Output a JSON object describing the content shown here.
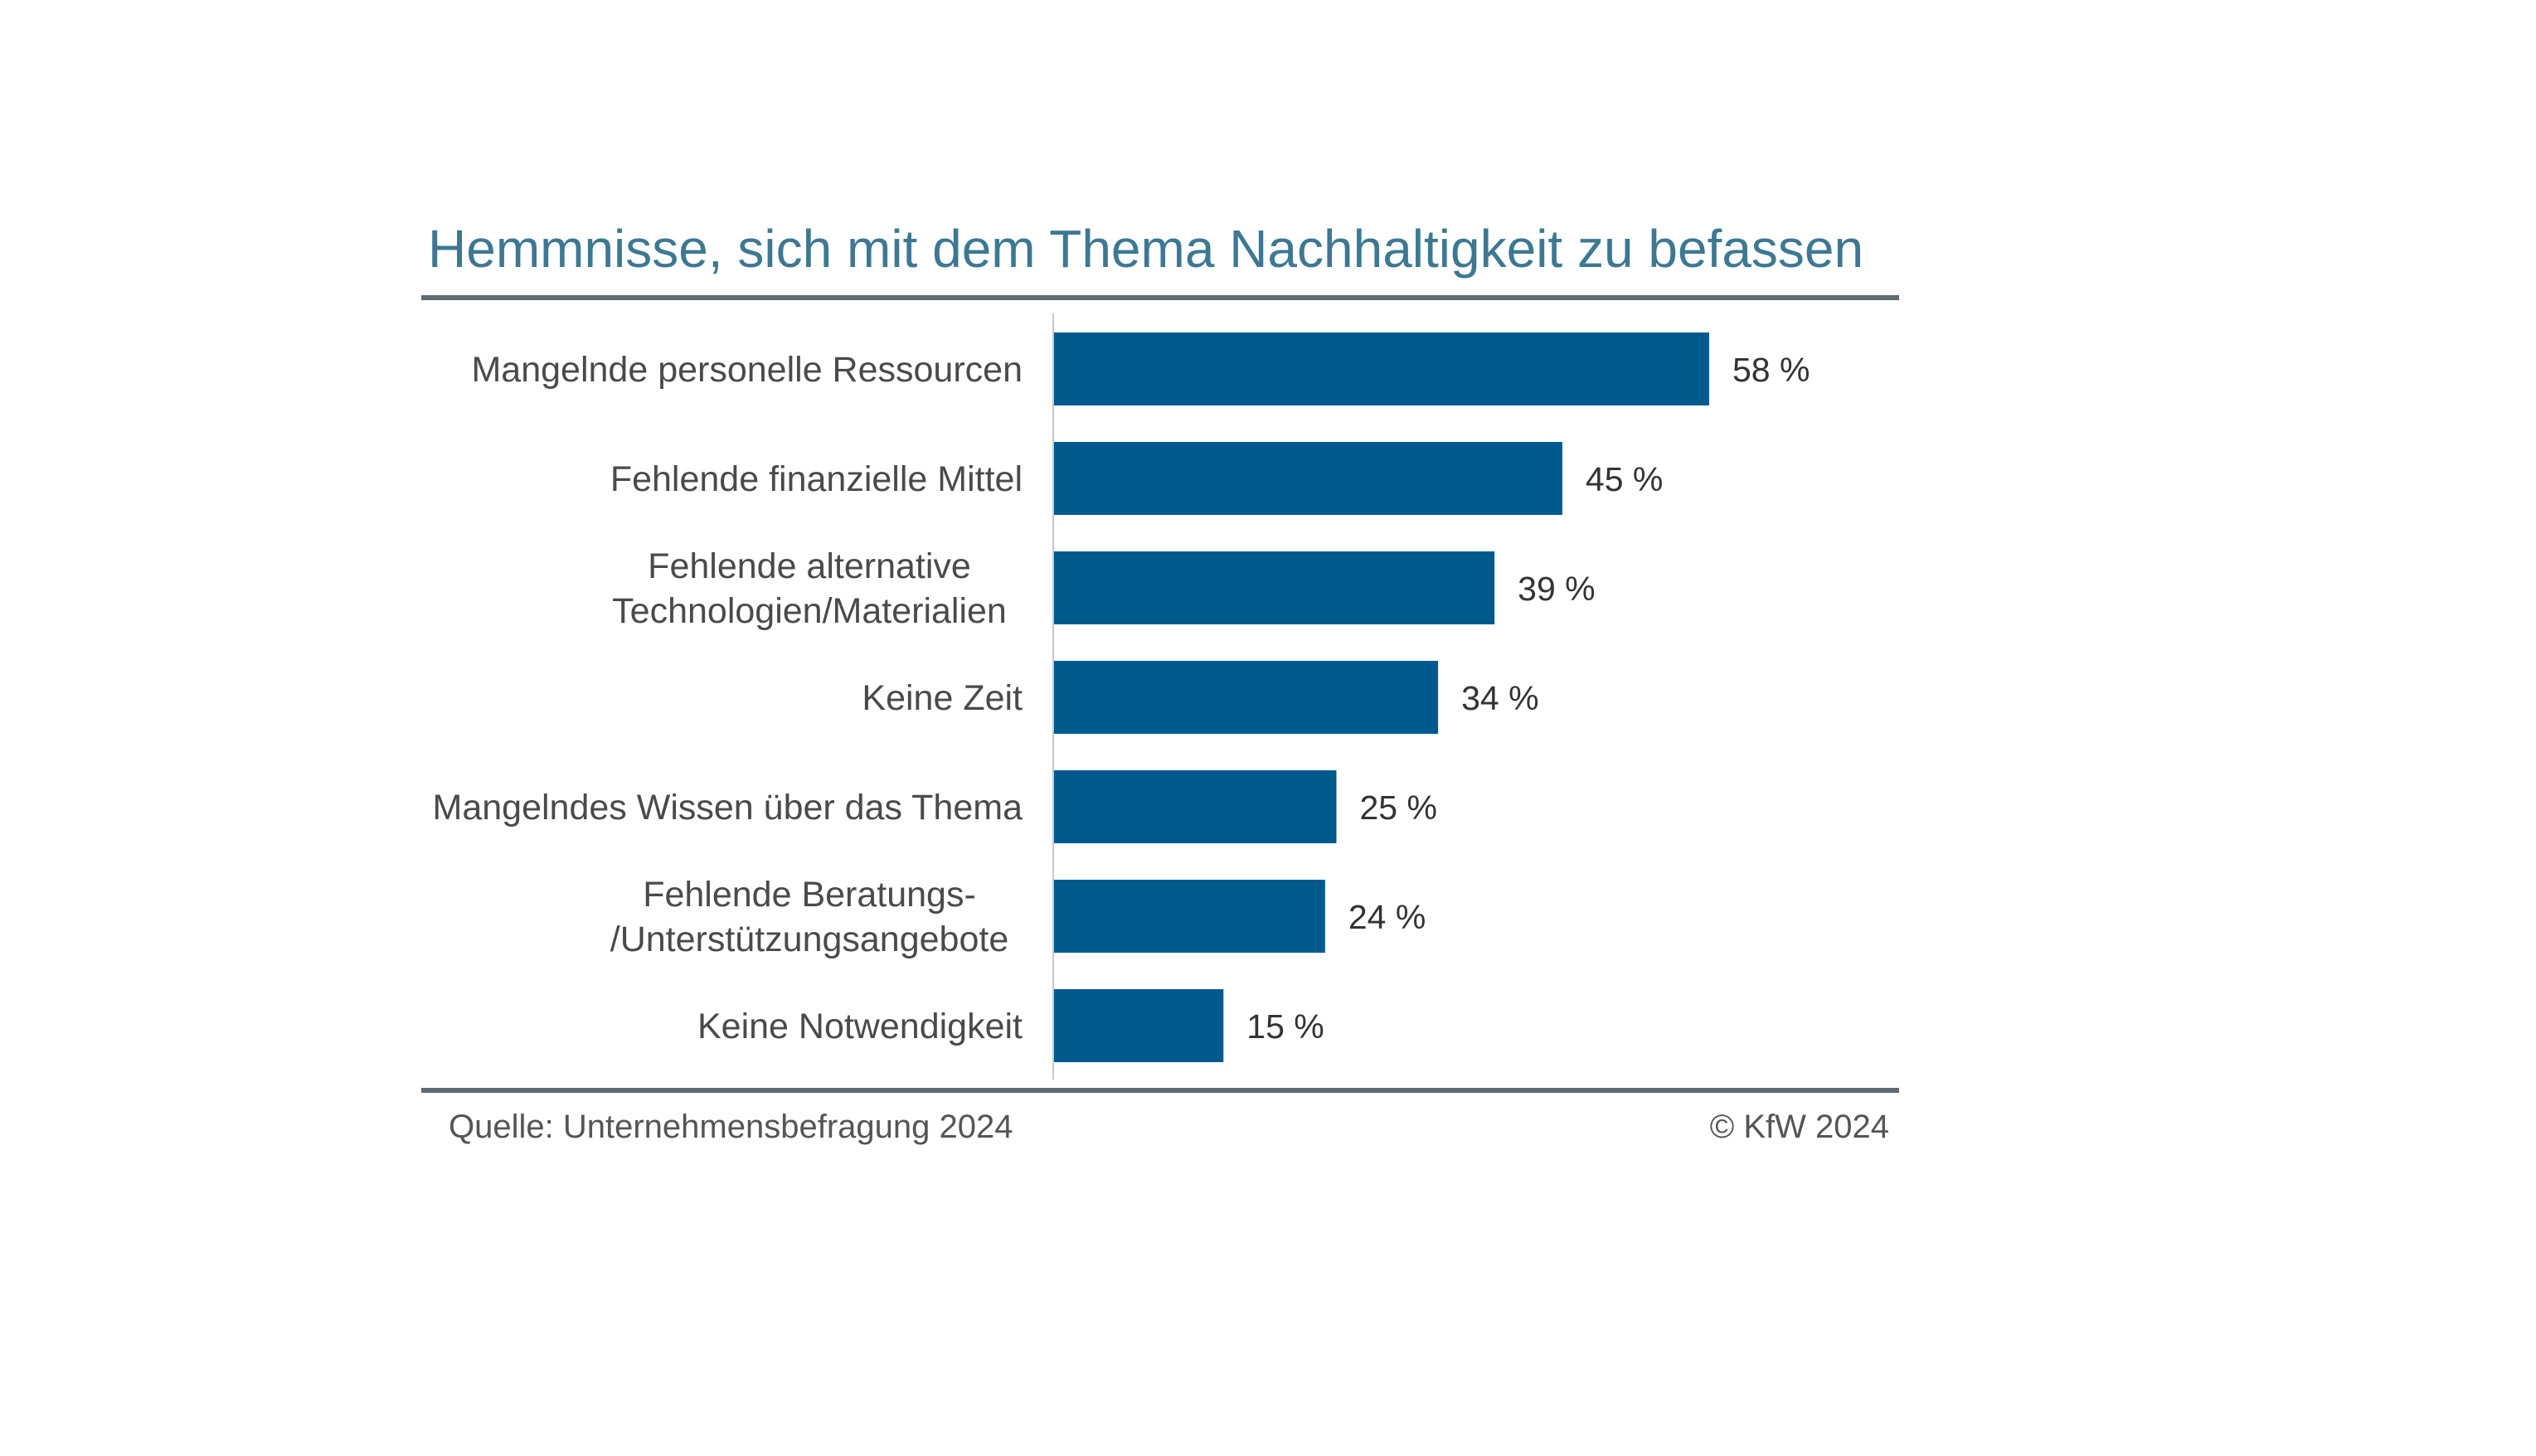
{
  "colors": {
    "title": "#3d7893",
    "bar": "#005a8e",
    "rule": "#5f6a72",
    "axis": "#c8c8c8"
  },
  "chart_data": {
    "type": "bar",
    "orientation": "horizontal",
    "title": "Hemmnisse, sich mit dem Thema Nachhaltigkeit zu befassen",
    "categories": [
      [
        "Mangelnde personelle Ressourcen"
      ],
      [
        "Fehlende finanzielle Mittel"
      ],
      [
        "Fehlende alternative",
        "Technologien/Materialien"
      ],
      [
        "Keine Zeit"
      ],
      [
        "Mangelndes Wissen über das Thema"
      ],
      [
        "Fehlende Beratungs-",
        "/Unterstützungsangebote"
      ],
      [
        "Keine Notwendigkeit"
      ]
    ],
    "values": [
      58,
      45,
      39,
      34,
      25,
      24,
      15
    ],
    "value_labels": [
      "58 %",
      "45 %",
      "39 %",
      "34 %",
      "25 %",
      "24 %",
      "15 %"
    ],
    "unit": "%",
    "xlim": [
      0,
      100
    ],
    "grid": false,
    "legend": "none"
  },
  "footer": {
    "source": "Quelle: Unternehmensbefragung 2024",
    "copyright": "© KfW 2024"
  }
}
